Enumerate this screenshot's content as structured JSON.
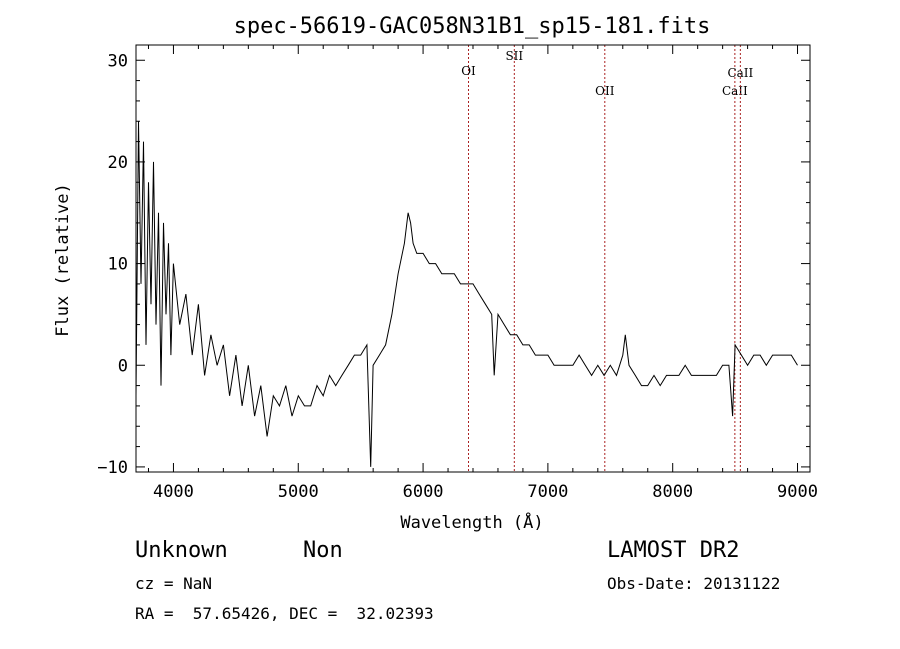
{
  "chart_data": {
    "type": "line",
    "title": "spec-56619-GAC058N31B1_sp15-181.fits",
    "xlabel": "Wavelength (Å)",
    "ylabel": "Flux (relative)",
    "xlim": [
      3700,
      9100
    ],
    "ylim": [
      -10.5,
      31.5
    ],
    "xticks": [
      4000,
      5000,
      6000,
      7000,
      8000,
      9000
    ],
    "yticks": [
      -10,
      0,
      10,
      20,
      30
    ],
    "grid": false,
    "series": [
      {
        "x": [
          3700,
          3720,
          3740,
          3760,
          3780,
          3800,
          3820,
          3840,
          3860,
          3880,
          3900,
          3920,
          3940,
          3960,
          3980,
          4000,
          4050,
          4100,
          4150,
          4200,
          4250,
          4300,
          4350,
          4400,
          4450,
          4500,
          4550,
          4600,
          4650,
          4700,
          4750,
          4800,
          4850,
          4900,
          4950,
          5000,
          5050,
          5100,
          5150,
          5200,
          5250,
          5300,
          5350,
          5400,
          5450,
          5500,
          5550,
          5580,
          5600,
          5650,
          5700,
          5750,
          5800,
          5850,
          5880,
          5900,
          5920,
          5950,
          6000,
          6050,
          6100,
          6150,
          6200,
          6250,
          6300,
          6350,
          6400,
          6450,
          6500,
          6550,
          6570,
          6600,
          6650,
          6700,
          6750,
          6800,
          6850,
          6900,
          6950,
          7000,
          7050,
          7100,
          7150,
          7200,
          7250,
          7300,
          7350,
          7400,
          7450,
          7500,
          7550,
          7600,
          7620,
          7650,
          7700,
          7750,
          7800,
          7850,
          7900,
          7950,
          8000,
          8050,
          8100,
          8150,
          8200,
          8250,
          8300,
          8350,
          8400,
          8450,
          8480,
          8500,
          8550,
          8600,
          8650,
          8700,
          8750,
          8800,
          8850,
          8900,
          8950,
          9000
        ],
        "y": [
          -3,
          24,
          8,
          22,
          2,
          18,
          6,
          20,
          4,
          15,
          -2,
          14,
          5,
          12,
          1,
          10,
          4,
          7,
          1,
          6,
          -1,
          3,
          0,
          2,
          -3,
          1,
          -4,
          0,
          -5,
          -2,
          -7,
          -3,
          -4,
          -2,
          -5,
          -3,
          -4,
          -4,
          -2,
          -3,
          -1,
          -2,
          -1,
          0,
          1,
          1,
          2,
          -10,
          0,
          1,
          2,
          5,
          9,
          12,
          15,
          14,
          12,
          11,
          11,
          10,
          10,
          9,
          9,
          9,
          8,
          8,
          8,
          7,
          6,
          5,
          -1,
          5,
          4,
          3,
          3,
          2,
          2,
          1,
          1,
          1,
          0,
          0,
          0,
          0,
          1,
          0,
          -1,
          0,
          -1,
          0,
          -1,
          1,
          3,
          0,
          -1,
          -2,
          -2,
          -1,
          -2,
          -1,
          -1,
          -1,
          0,
          -1,
          -1,
          -1,
          -1,
          -1,
          0,
          0,
          -5,
          2,
          1,
          0,
          1,
          1,
          0,
          1,
          1,
          1,
          1,
          0
        ]
      }
    ],
    "annotations": [
      {
        "label": "OI",
        "x": 6364
      },
      {
        "label": "SII",
        "x": 6731
      },
      {
        "label": "OII",
        "x": 7456
      },
      {
        "label": "CaII",
        "x": 8498
      },
      {
        "label": "CaII",
        "x": 8542
      }
    ]
  },
  "info": {
    "class": "Unknown",
    "subclass": "Non",
    "survey": "LAMOST DR2",
    "cz": "cz = NaN",
    "obs_date": "Obs-Date: 20131122",
    "coords": "RA =  57.65426, DEC =  32.02393"
  }
}
